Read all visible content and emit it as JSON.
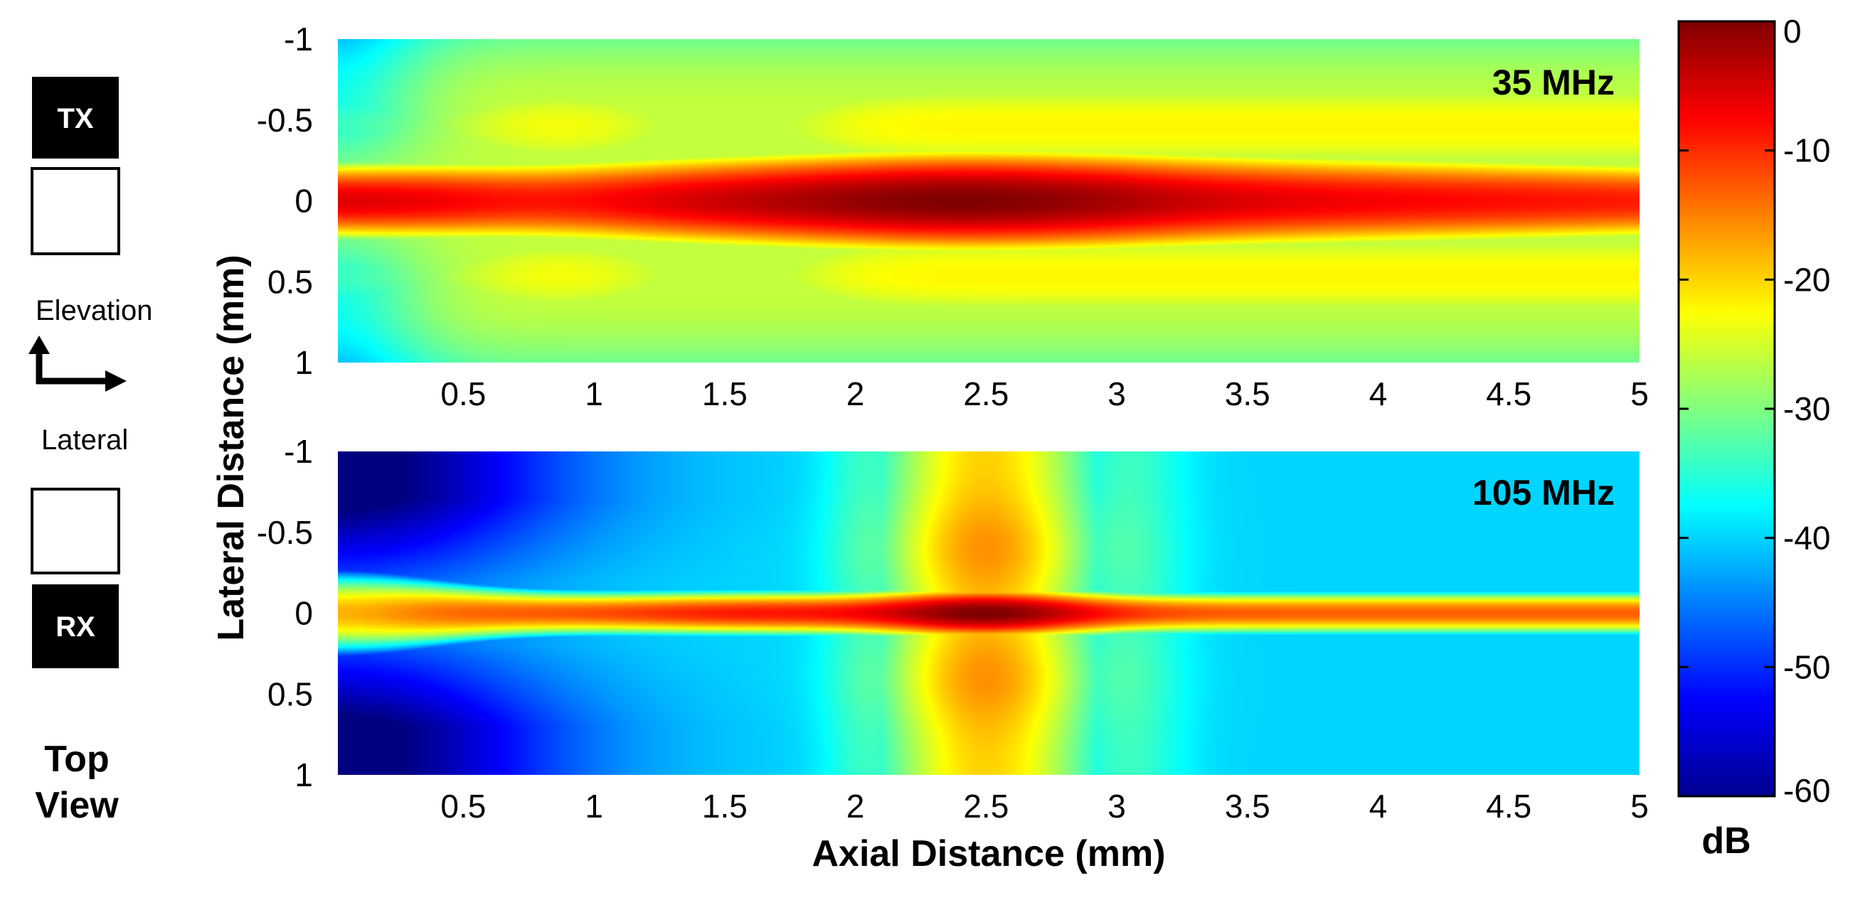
{
  "chart_data": {
    "type": "heatmap",
    "xlabel": "Axial Distance (mm)",
    "ylabel": "Lateral Distance (mm)",
    "x_ticks": [
      "0.5",
      "1",
      "1.5",
      "2",
      "2.5",
      "3",
      "3.5",
      "4",
      "4.5",
      "5"
    ],
    "y_ticks": [
      "-1",
      "-0.5",
      "0",
      "0.5",
      "1"
    ],
    "xlim": [
      0.02,
      5
    ],
    "ylim": [
      -1,
      1
    ],
    "panels": [
      {
        "title": "35 MHz",
        "peak_axial_mm": 2.4,
        "beam_width_mm": 0.45
      },
      {
        "title": "105 MHz",
        "peak_axial_mm": 2.5,
        "beam_width_mm": 0.22
      }
    ],
    "colorbar": {
      "label": "dB",
      "range": [
        -60,
        0
      ],
      "ticks": [
        "0",
        "-10",
        "-20",
        "-30",
        "-40",
        "-50",
        "-60"
      ],
      "colormap": "jet"
    }
  },
  "schematic": {
    "tx_label": "TX",
    "rx_label": "RX",
    "elevation_label": "Elevation",
    "lateral_label": "Lateral",
    "caption_line1": "Top",
    "caption_line2": "View"
  }
}
